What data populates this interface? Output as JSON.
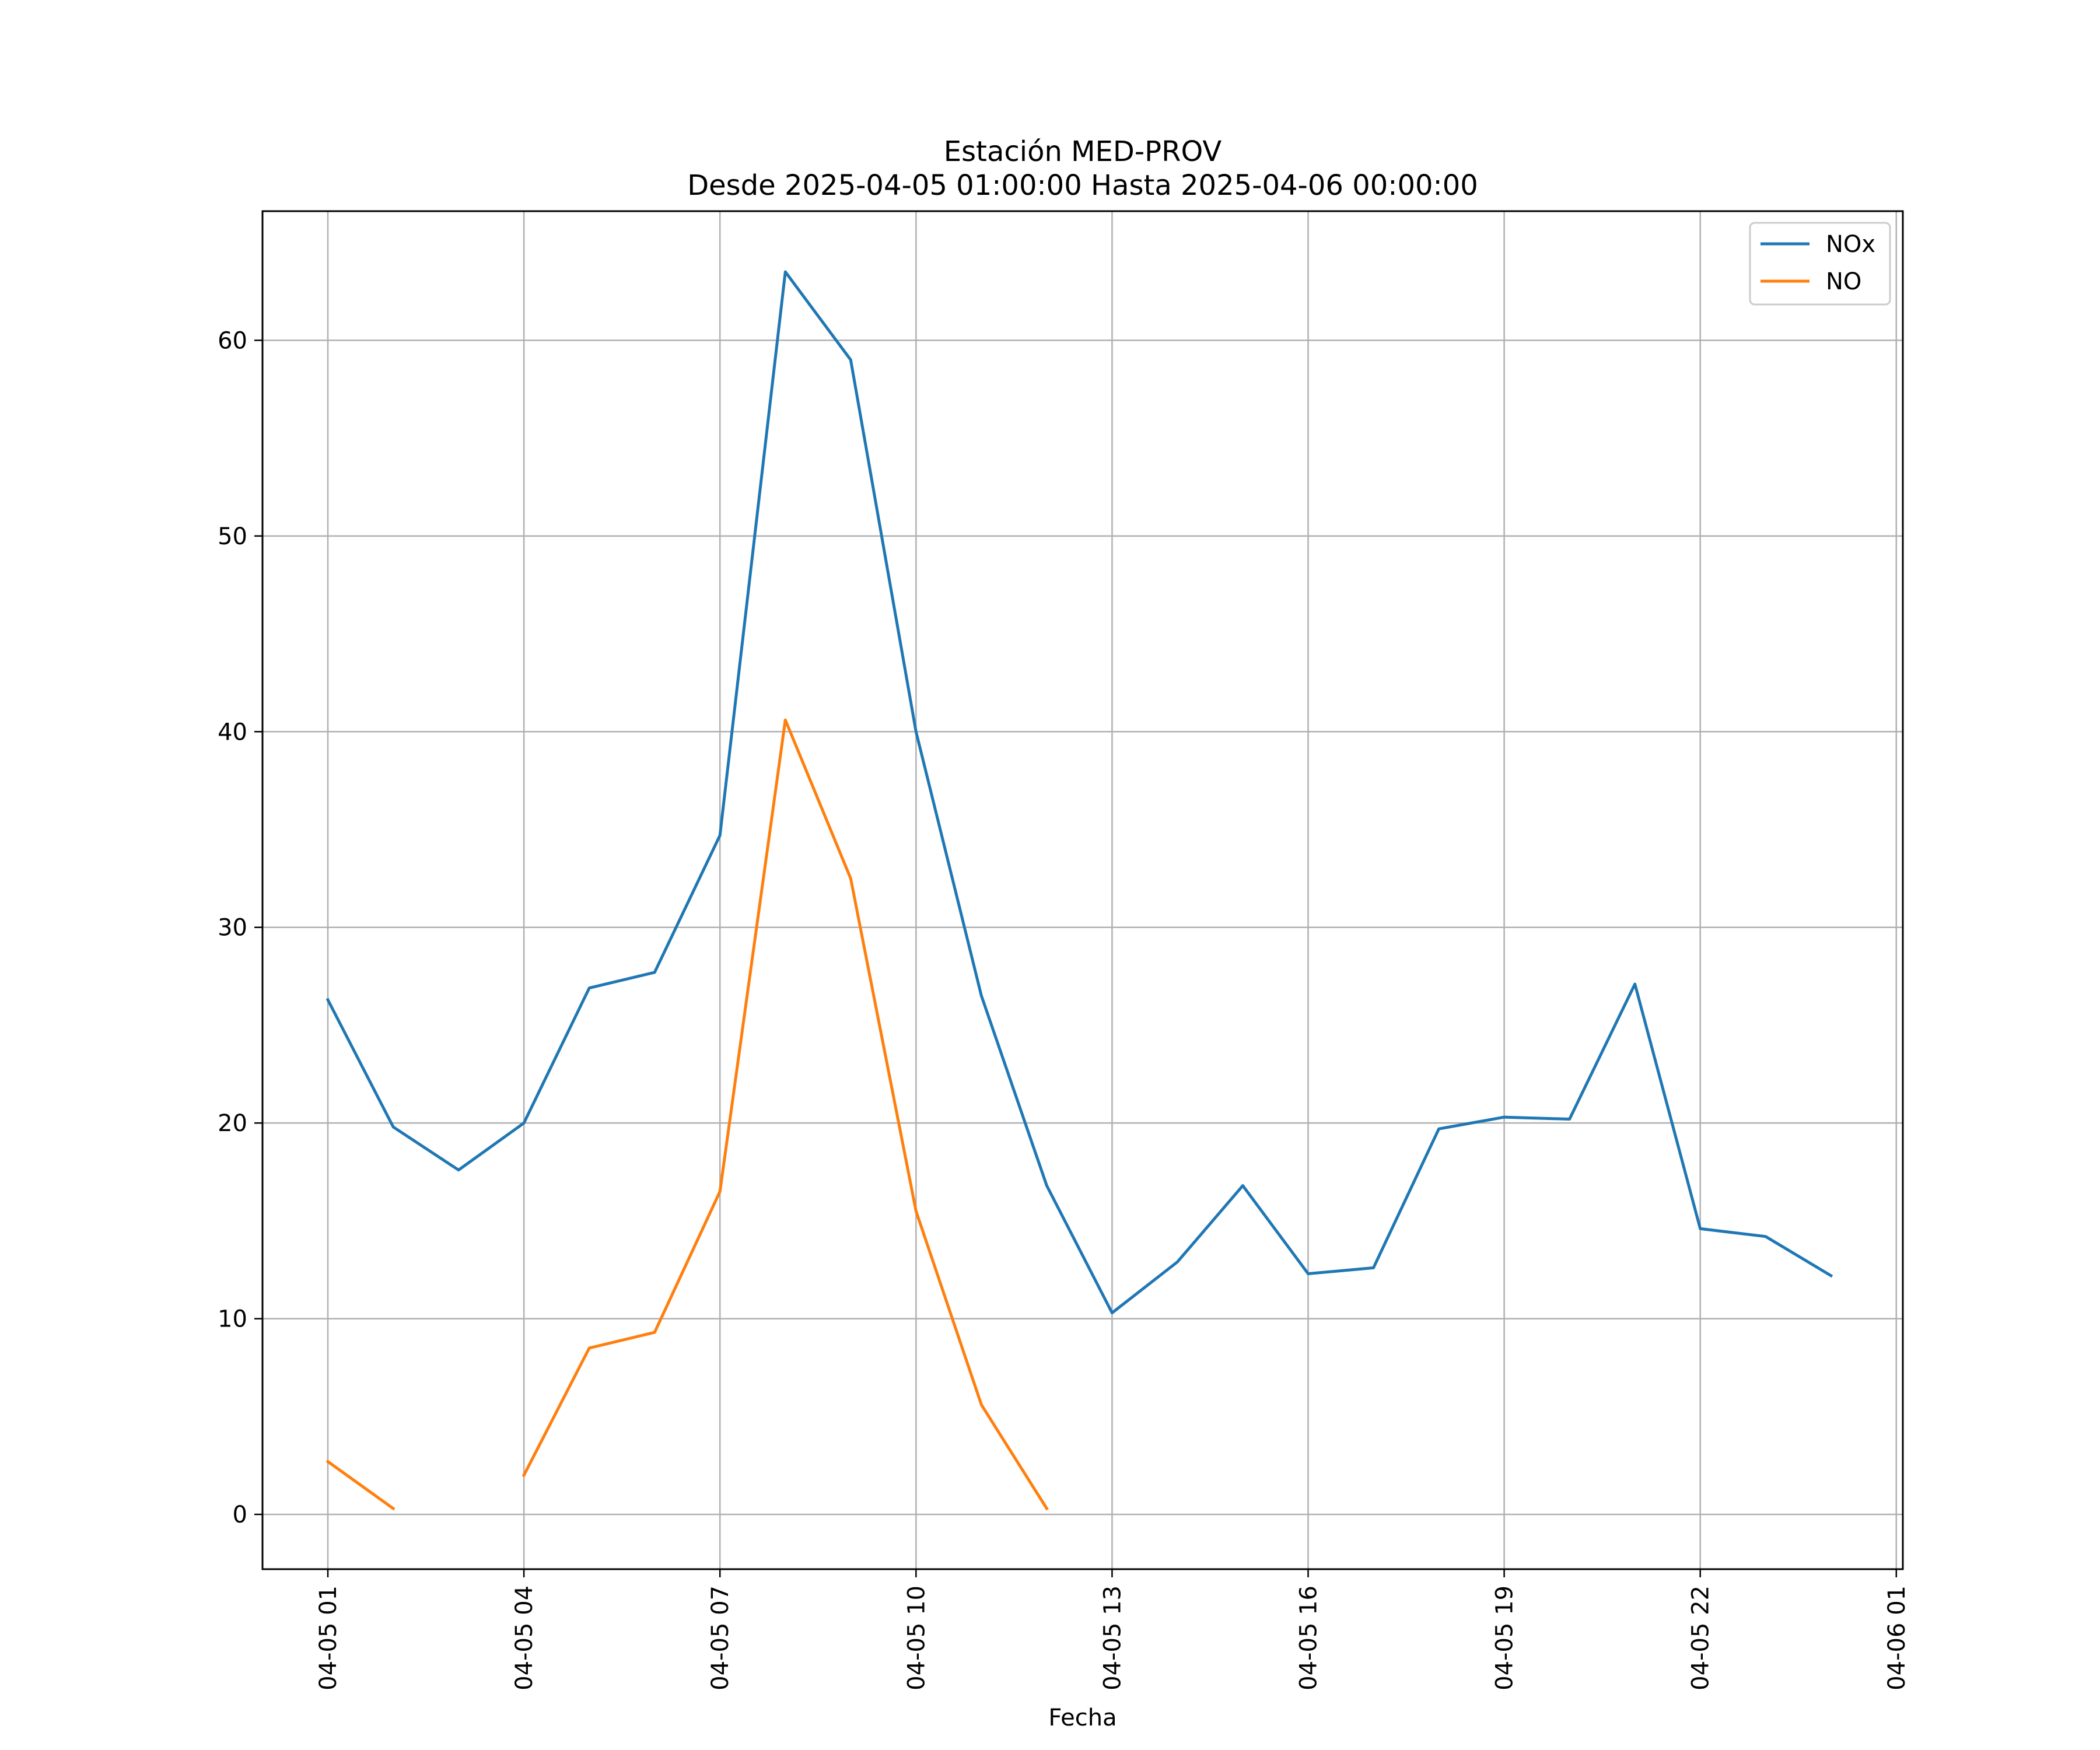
{
  "chart_data": {
    "type": "line",
    "title": "Estación MED-PROV",
    "subtitle": "Desde 2025-04-05 01:00:00 Hasta 2025-04-06 00:00:00",
    "xlabel": "Fecha",
    "ylabel": "",
    "x": [
      "2025-04-05 01:00",
      "2025-04-05 02:00",
      "2025-04-05 03:00",
      "2025-04-05 04:00",
      "2025-04-05 05:00",
      "2025-04-05 06:00",
      "2025-04-05 07:00",
      "2025-04-05 08:00",
      "2025-04-05 09:00",
      "2025-04-05 10:00",
      "2025-04-05 11:00",
      "2025-04-05 12:00",
      "2025-04-05 13:00",
      "2025-04-05 14:00",
      "2025-04-05 15:00",
      "2025-04-05 16:00",
      "2025-04-05 17:00",
      "2025-04-05 18:00",
      "2025-04-05 19:00",
      "2025-04-05 20:00",
      "2025-04-05 21:00",
      "2025-04-05 22:00",
      "2025-04-05 23:00",
      "2025-04-06 00:00"
    ],
    "xlim": [
      "2025-04-05 00:00",
      "2025-04-06 01:06"
    ],
    "ylim": [
      -2.8,
      66.6
    ],
    "xticks": [
      "2025-04-05 01:00",
      "2025-04-05 04:00",
      "2025-04-05 07:00",
      "2025-04-05 10:00",
      "2025-04-05 13:00",
      "2025-04-05 16:00",
      "2025-04-05 19:00",
      "2025-04-05 22:00",
      "2025-04-06 01:00"
    ],
    "xtick_labels": [
      "04-05 01",
      "04-05 04",
      "04-05 07",
      "04-05 10",
      "04-05 13",
      "04-05 16",
      "04-05 19",
      "04-05 22",
      "04-06 01"
    ],
    "yticks": [
      0,
      10,
      20,
      30,
      40,
      50,
      60
    ],
    "grid": true,
    "legend_position": "top-right",
    "series": [
      {
        "name": "NOx",
        "color": "#1f77b4",
        "values": [
          26.3,
          19.8,
          17.6,
          20.0,
          26.9,
          27.7,
          34.7,
          63.5,
          59.0,
          40.0,
          26.5,
          16.8,
          10.3,
          12.9,
          16.8,
          12.3,
          12.6,
          19.7,
          20.3,
          20.2,
          27.1,
          14.6,
          14.2,
          12.2
        ]
      },
      {
        "name": "NO",
        "color": "#ff7f0e",
        "values": [
          2.7,
          0.3,
          null,
          2.0,
          8.5,
          9.3,
          16.5,
          40.6,
          32.5,
          15.5,
          5.6,
          0.3,
          null,
          null,
          null,
          null,
          null,
          null,
          null,
          null,
          null,
          null,
          null,
          null
        ]
      }
    ]
  }
}
